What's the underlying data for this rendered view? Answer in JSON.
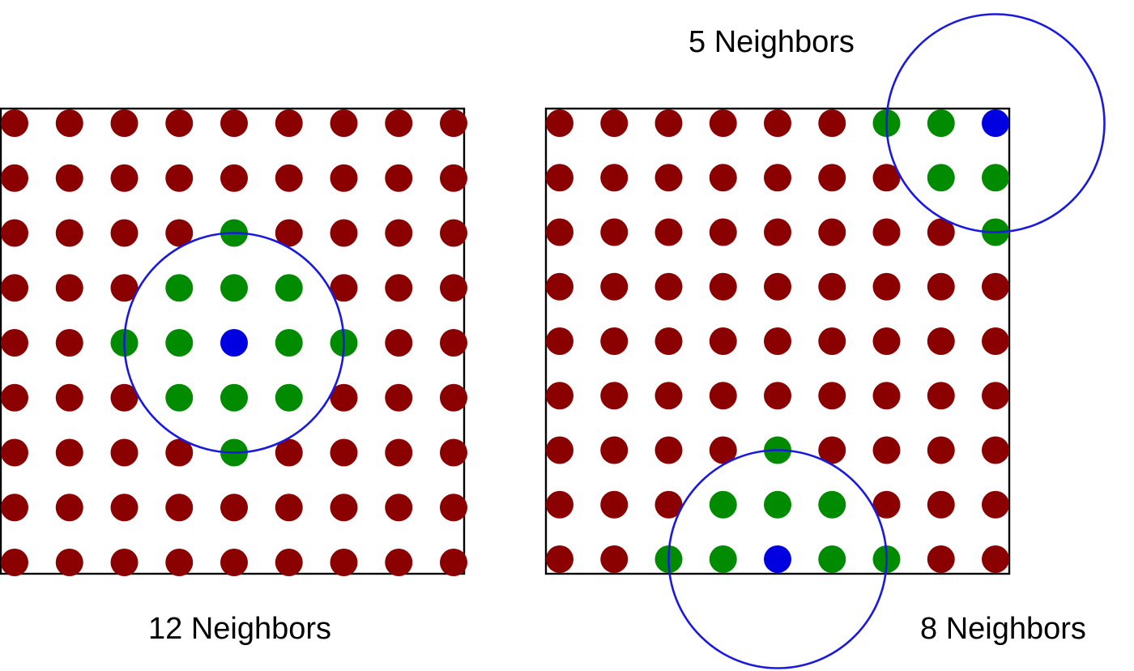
{
  "colors": {
    "other_point": "#8b0000",
    "neighbor_point": "#008b00",
    "center_point": "#0000e0",
    "radius_circle": "#1a1adf",
    "frame": "#000000"
  },
  "grid": {
    "rows": 9,
    "cols": 9
  },
  "panels": [
    {
      "name": "interior",
      "caption": "12 Neighbors",
      "center_cell": [
        4,
        4
      ],
      "radius_cells": 2,
      "neighbor_count": 12
    },
    {
      "name": "boundary",
      "captions": {
        "corner": "5 Neighbors",
        "edge": "8 Neighbors"
      },
      "regions": [
        {
          "name": "corner",
          "center_cell": [
            0,
            8
          ],
          "radius_cells": 2,
          "neighbor_count": 5
        },
        {
          "name": "edge",
          "center_cell": [
            8,
            4
          ],
          "radius_cells": 2,
          "neighbor_count": 8
        }
      ]
    }
  ]
}
